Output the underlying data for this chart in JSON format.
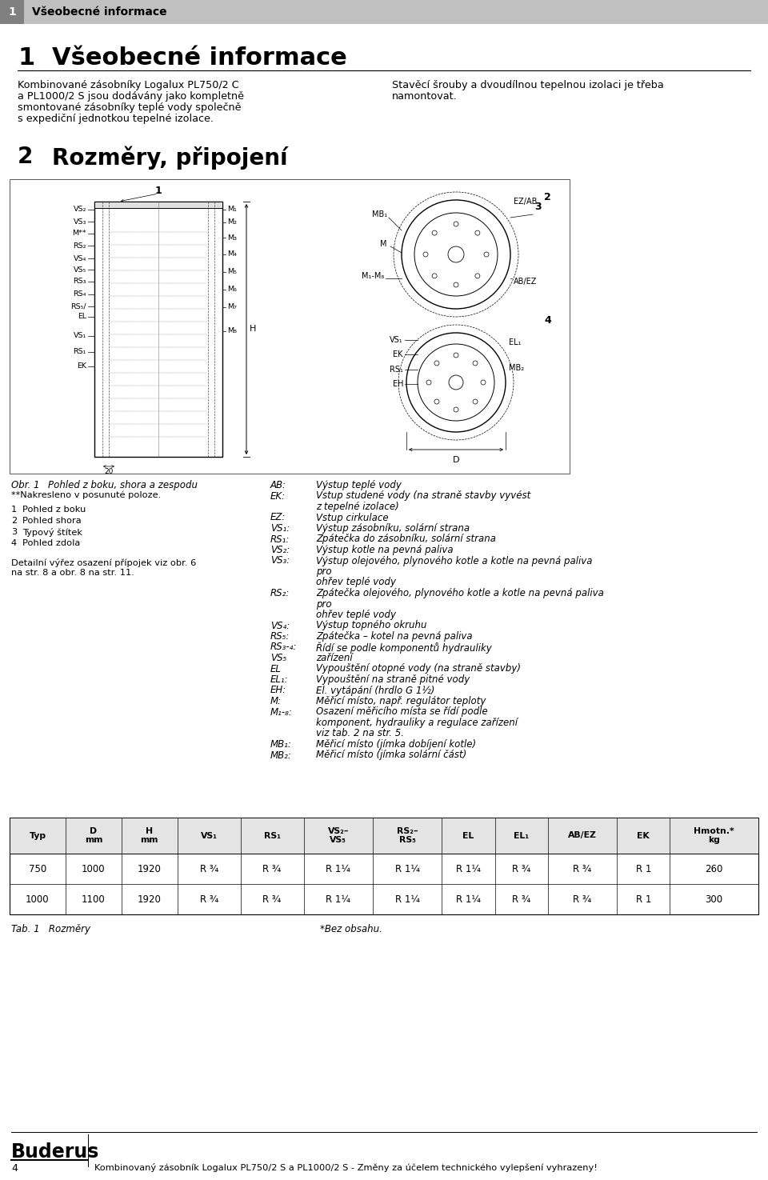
{
  "bg_color": "#ffffff",
  "header_bg": "#c0c0c0",
  "header_num_bg": "#808080",
  "section1_left_lines": [
    "Kombinované zásobníky Logalux PL750/2 C",
    "a PL1000/2 S jsou dodávány jako kompletně",
    "smontované zásobníky teplé vody společně",
    "s expediční jednotkou tepelné izolace."
  ],
  "section1_right_lines": [
    "Stavěcí šrouby a dvoudílnou tepelnou izolaci je třeba",
    "namontovat."
  ],
  "legend_entries": [
    {
      "label": "AB:",
      "text": [
        "Výstup teplé vody"
      ]
    },
    {
      "label": "EK:",
      "text": [
        "Vstup studené vody (na straně stavby vyvést",
        "z tepelné izolace)"
      ]
    },
    {
      "label": "EZ:",
      "text": [
        "Vstup cirkulace"
      ]
    },
    {
      "label": "VS₁:",
      "text": [
        "Výstup zásobníku, solární strana"
      ]
    },
    {
      "label": "RS₁:",
      "text": [
        "Zpátečka do zásobníku, solární strana"
      ]
    },
    {
      "label": "VS₂:",
      "text": [
        "Výstup kotle na pevná paliva"
      ]
    },
    {
      "label": "VS₃:",
      "text": [
        "Výstup olejového, plynového kotle a kotle na pevná paliva",
        "pro",
        "ohřev teplé vody"
      ]
    },
    {
      "label": "RS₂:",
      "text": [
        "Zpátečka olejového, plynového kotle a kotle na pevná paliva",
        "pro",
        "ohřev teplé vody"
      ]
    },
    {
      "label": "VS₄:",
      "text": [
        "Výstup topného okruhu"
      ]
    },
    {
      "label": "RS₅:",
      "text": [
        "Zpátečka – kotel na pevná paliva"
      ]
    },
    {
      "label": "RS₃-₄:",
      "text": [
        "Řídí se podle komponentů hydrauliky"
      ]
    },
    {
      "label": "VS₅",
      "text": [
        "zařízení"
      ]
    },
    {
      "label": "EL",
      "text": [
        "Vypouštění otopné vody (na straně stavby)"
      ]
    },
    {
      "label": "EL₁:",
      "text": [
        "Vypouštění na straně pitné vody"
      ]
    },
    {
      "label": "EH:",
      "text": [
        "El. vytápání (hrdlo G 1½)"
      ]
    },
    {
      "label": "M:",
      "text": [
        "Měřicí místo, např. regulátor teploty"
      ]
    },
    {
      "label": "M₁-₈:",
      "text": [
        "Osazení měřicího místa se řídí podle",
        "komponent, hydrauliky a regulace zařízení",
        "viz tab. 2 na str. 5."
      ]
    },
    {
      "label": "MB₁:",
      "text": [
        "Měřicí místo (jímka dobíjení kotle)"
      ]
    },
    {
      "label": "MB₂:",
      "text": [
        "Měřicí místo (jímka solární část)"
      ]
    }
  ],
  "table_header": [
    "Typ",
    "D\nmm",
    "H\nmm",
    "VS₁",
    "RS₁",
    "VS₂–\nVS₅",
    "RS₂–\nRS₅",
    "EL",
    "EL₁",
    "AB/EZ",
    "EK",
    "Hmotn.*\nkg"
  ],
  "table_rows": [
    [
      "750",
      "1000",
      "1920",
      "R ¾",
      "R ¾",
      "R 1¼",
      "R 1¼",
      "R 1¼",
      "R ¾",
      "R ¾",
      "R 1",
      "260"
    ],
    [
      "1000",
      "1100",
      "1920",
      "R ¾",
      "R ¾",
      "R 1¼",
      "R 1¼",
      "R 1¼",
      "R ¾",
      "R ¾",
      "R 1",
      "300"
    ]
  ],
  "table_note": "Tab. 1   Rozměry",
  "table_note2": "*Bez obsahu.",
  "footer_text": "Kombinovaný zásobník Logalux PL750/2 S a PL1000/2 S - Změny za účelem technického vylepšení vyhrazeny!"
}
